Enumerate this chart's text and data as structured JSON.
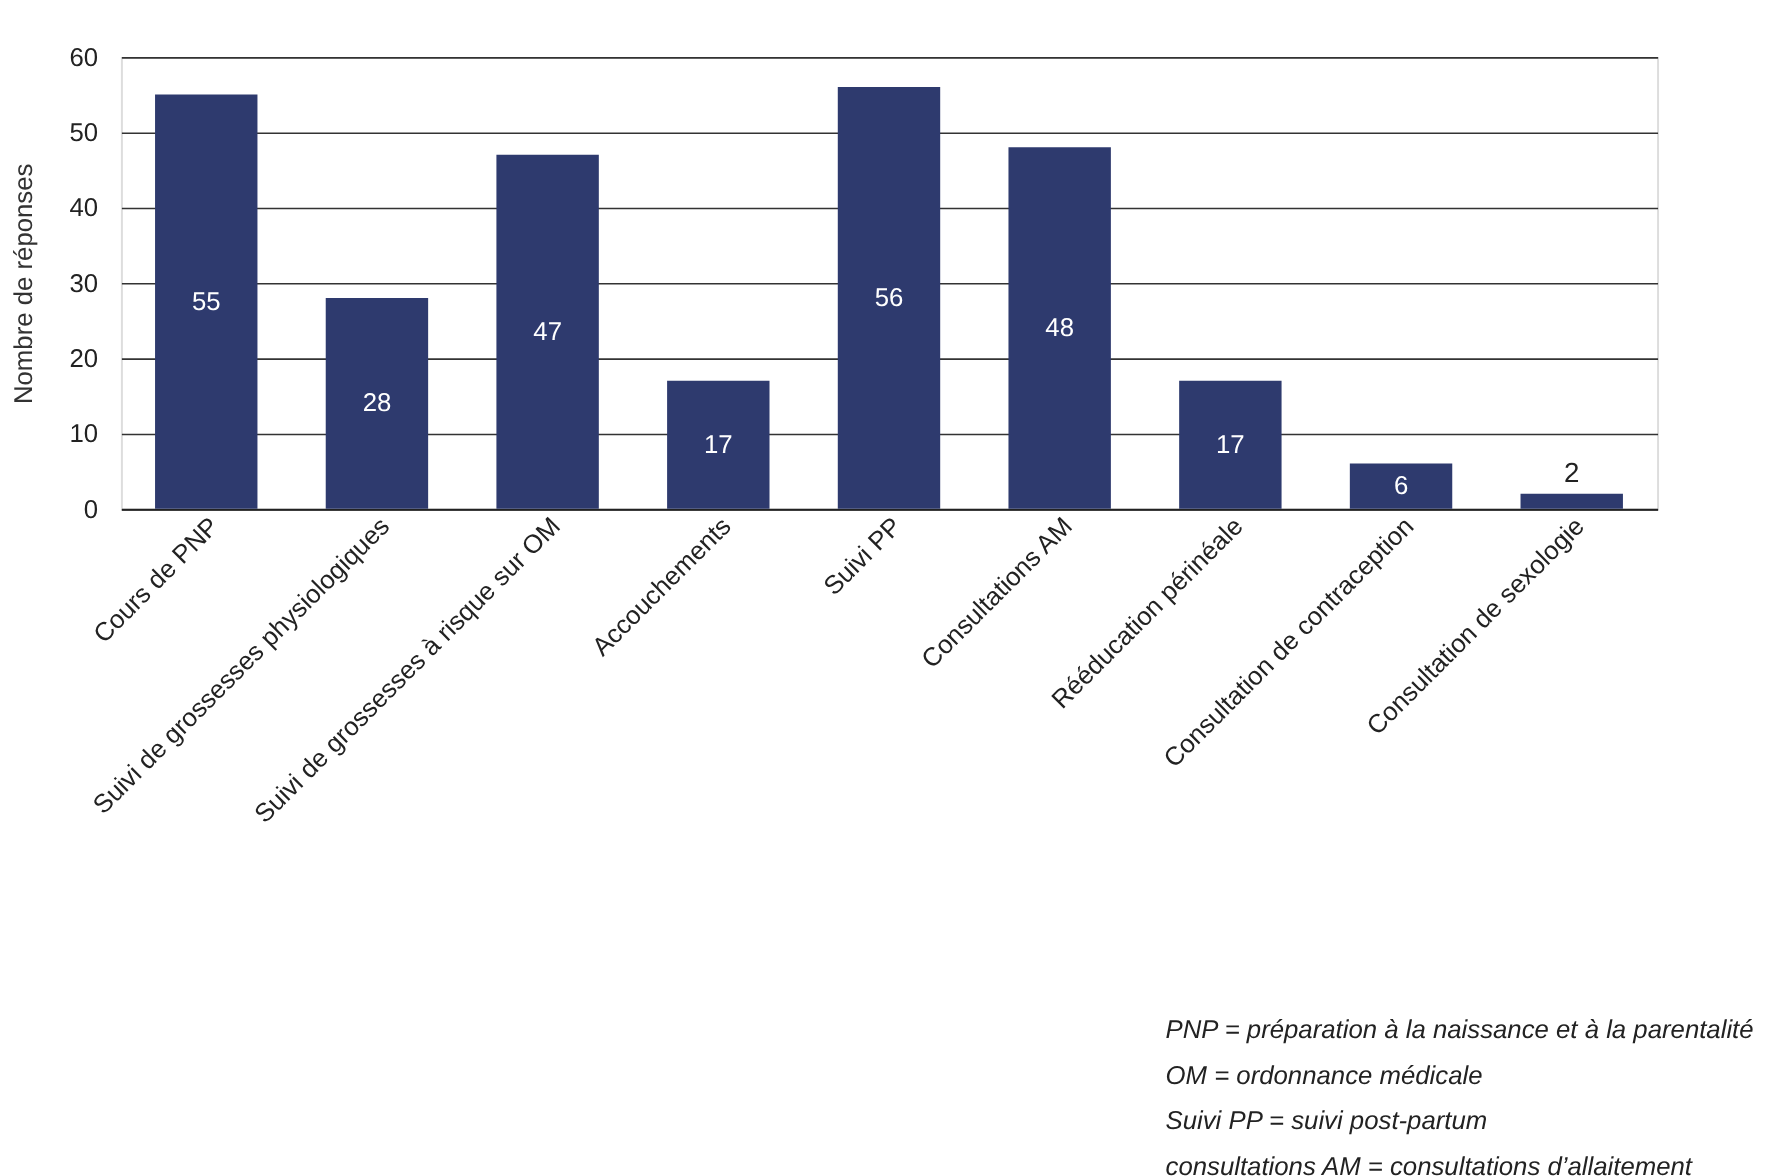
{
  "chart_data": {
    "type": "bar",
    "ylabel": "Nombre de réponses",
    "categories": [
      "Cours de PNP",
      "Suivi de grossesses physiologiques",
      "Suivi de grossesses à risque sur OM",
      "Accouchements",
      "Suivi PP",
      "Consultations AM",
      "Rééducation périnéale",
      "Consultation de contraception",
      "Consultation de sexologie"
    ],
    "values": [
      55,
      28,
      47,
      17,
      56,
      48,
      17,
      6,
      2
    ],
    "color": "#2e3a6e",
    "ylim": [
      0,
      60
    ],
    "yticks": [
      0,
      10,
      20,
      30,
      40,
      50,
      60
    ],
    "grid": "y",
    "data_labels": true,
    "annotations": [
      "PNP = préparation à la naissance et à la parentalité",
      "OM = ordonnance médicale",
      "Suivi PP = suivi post-partum",
      "consultations AM = consultations d’allaitement"
    ]
  }
}
